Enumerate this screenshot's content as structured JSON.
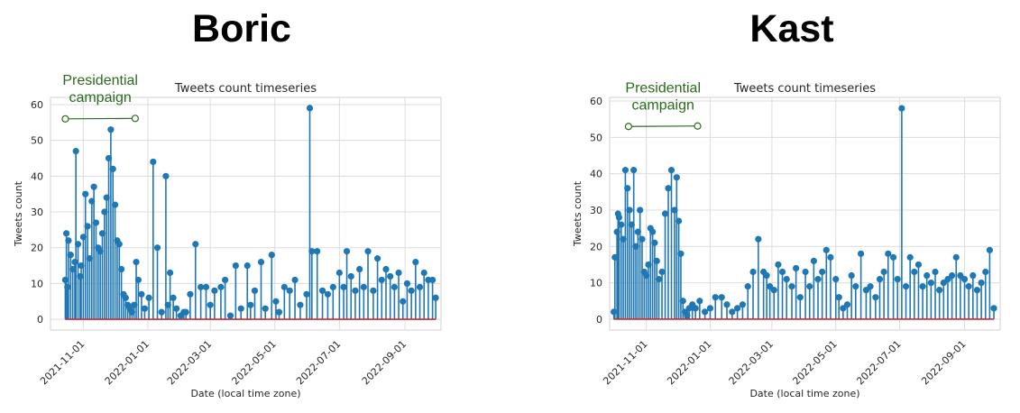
{
  "titles": {
    "left": "Boric",
    "right": "Kast"
  },
  "chart_data": [
    {
      "type": "line",
      "style": "stem",
      "title": "Tweets count timeseries",
      "xlabel": "Date (local time zone)",
      "ylabel": "Tweets count",
      "x_ticks": [
        "2021-11-01",
        "2022-01-01",
        "2022-03-01",
        "2022-05-01",
        "2022-07-01",
        "2022-09-01"
      ],
      "y_ticks": [
        0,
        10,
        20,
        30,
        40,
        50,
        60
      ],
      "xlim": [
        "2021-10-01",
        "2022-10-05"
      ],
      "ylim": [
        -3,
        62
      ],
      "grid": true,
      "marker_color": "#1f77b4",
      "baseline_color": "#d62728",
      "annotation": {
        "text": "Presidential\ncampaign",
        "start": "2021-10-15",
        "end": "2021-12-20",
        "level": 56,
        "color": "#2b6a1e"
      },
      "series": [
        {
          "x": [
            "2021-10-15",
            "2021-10-16",
            "2021-10-17",
            "2021-10-18",
            "2021-10-20",
            "2021-10-22",
            "2021-10-24",
            "2021-10-25",
            "2021-10-27",
            "2021-10-29",
            "2021-10-30",
            "2021-11-01",
            "2021-11-03",
            "2021-11-05",
            "2021-11-07",
            "2021-11-09",
            "2021-11-11",
            "2021-11-13",
            "2021-11-15",
            "2021-11-17",
            "2021-11-19",
            "2021-11-21",
            "2021-11-23",
            "2021-11-25",
            "2021-11-27",
            "2021-11-29",
            "2021-12-01",
            "2021-12-03",
            "2021-12-05",
            "2021-12-07",
            "2021-12-09",
            "2021-12-11",
            "2021-12-13",
            "2021-12-15",
            "2021-12-17",
            "2021-12-19",
            "2021-12-21",
            "2021-12-23",
            "2021-12-26",
            "2021-12-29",
            "2022-01-02",
            "2022-01-06",
            "2022-01-10",
            "2022-01-14",
            "2022-01-18",
            "2022-01-20",
            "2022-01-22",
            "2022-01-25",
            "2022-01-28",
            "2022-02-01",
            "2022-02-04",
            "2022-02-06",
            "2022-02-10",
            "2022-02-15",
            "2022-02-20",
            "2022-02-25",
            "2022-03-01",
            "2022-03-05",
            "2022-03-11",
            "2022-03-15",
            "2022-03-20",
            "2022-03-25",
            "2022-03-30",
            "2022-04-05",
            "2022-04-08",
            "2022-04-12",
            "2022-04-18",
            "2022-04-22",
            "2022-04-28",
            "2022-05-02",
            "2022-05-05",
            "2022-05-10",
            "2022-05-15",
            "2022-05-20",
            "2022-05-25",
            "2022-05-31",
            "2022-06-03",
            "2022-06-05",
            "2022-06-10",
            "2022-06-15",
            "2022-06-20",
            "2022-06-25",
            "2022-07-01",
            "2022-07-05",
            "2022-07-08",
            "2022-07-12",
            "2022-07-16",
            "2022-07-20",
            "2022-07-24",
            "2022-07-28",
            "2022-08-02",
            "2022-08-06",
            "2022-08-10",
            "2022-08-14",
            "2022-08-18",
            "2022-08-22",
            "2022-08-26",
            "2022-08-30",
            "2022-09-03",
            "2022-09-07",
            "2022-09-11",
            "2022-09-15",
            "2022-09-19",
            "2022-09-23",
            "2022-09-27",
            "2022-09-30"
          ],
          "y": [
            11,
            24,
            9,
            22,
            18,
            14,
            16,
            47,
            21,
            12,
            15,
            23,
            35,
            26,
            17,
            33,
            37,
            27,
            20,
            19,
            24,
            30,
            34,
            45,
            53,
            42,
            32,
            22,
            21,
            14,
            7,
            6,
            4,
            3,
            2,
            4,
            16,
            11,
            7,
            3,
            6,
            44,
            20,
            2,
            40,
            4,
            13,
            6,
            3,
            1,
            2,
            2,
            7,
            21,
            9,
            9,
            4,
            8,
            9,
            11,
            1,
            15,
            3,
            15,
            4,
            8,
            16,
            3,
            18,
            5,
            2,
            9,
            8,
            11,
            4,
            7,
            59,
            19,
            19,
            8,
            7,
            9,
            13,
            9,
            19,
            12,
            8,
            14,
            9,
            19,
            8,
            17,
            11,
            14,
            12,
            9,
            13,
            5,
            10,
            8,
            16,
            9,
            13,
            11,
            11,
            6
          ]
        }
      ]
    },
    {
      "type": "line",
      "style": "stem",
      "title": "Tweets count timeseries",
      "xlabel": "Date (local time zone)",
      "ylabel": "Tweets count",
      "x_ticks": [
        "2021-11-01",
        "2022-01-01",
        "2022-03-01",
        "2022-05-01",
        "2022-07-01",
        "2022-09-01"
      ],
      "y_ticks": [
        0,
        10,
        20,
        30,
        40,
        50,
        60
      ],
      "xlim": [
        "2021-09-27",
        "2022-10-05"
      ],
      "ylim": [
        -3,
        61
      ],
      "grid": true,
      "marker_color": "#1f77b4",
      "baseline_color": "#d62728",
      "annotation": {
        "text": "Presidential\ncampaign",
        "start": "2021-10-15",
        "end": "2021-12-20",
        "level": 53,
        "color": "#2b6a1e"
      },
      "series": [
        {
          "x": [
            "2021-10-01",
            "2021-10-02",
            "2021-10-04",
            "2021-10-05",
            "2021-10-06",
            "2021-10-08",
            "2021-10-10",
            "2021-10-12",
            "2021-10-14",
            "2021-10-16",
            "2021-10-18",
            "2021-10-20",
            "2021-10-22",
            "2021-10-24",
            "2021-10-26",
            "2021-10-28",
            "2021-10-30",
            "2021-11-01",
            "2021-11-03",
            "2021-11-05",
            "2021-11-07",
            "2021-11-09",
            "2021-11-11",
            "2021-11-13",
            "2021-11-16",
            "2021-11-19",
            "2021-11-22",
            "2021-11-25",
            "2021-11-28",
            "2021-11-30",
            "2021-12-02",
            "2021-12-04",
            "2021-12-06",
            "2021-12-08",
            "2021-12-10",
            "2021-12-12",
            "2021-12-15",
            "2021-12-18",
            "2021-12-22",
            "2021-12-27",
            "2022-01-01",
            "2022-01-06",
            "2022-01-12",
            "2022-01-17",
            "2022-01-22",
            "2022-01-27",
            "2022-02-01",
            "2022-02-06",
            "2022-02-11",
            "2022-02-16",
            "2022-02-21",
            "2022-02-24",
            "2022-02-27",
            "2022-03-03",
            "2022-03-07",
            "2022-03-11",
            "2022-03-15",
            "2022-03-20",
            "2022-03-24",
            "2022-03-28",
            "2022-04-02",
            "2022-04-06",
            "2022-04-10",
            "2022-04-14",
            "2022-04-18",
            "2022-04-22",
            "2022-04-26",
            "2022-05-01",
            "2022-05-04",
            "2022-05-08",
            "2022-05-12",
            "2022-05-16",
            "2022-05-20",
            "2022-05-25",
            "2022-05-30",
            "2022-06-03",
            "2022-06-08",
            "2022-06-12",
            "2022-06-16",
            "2022-06-20",
            "2022-06-25",
            "2022-06-29",
            "2022-07-03",
            "2022-07-07",
            "2022-07-11",
            "2022-07-15",
            "2022-07-19",
            "2022-07-23",
            "2022-07-27",
            "2022-07-31",
            "2022-08-04",
            "2022-08-08",
            "2022-08-12",
            "2022-08-16",
            "2022-08-20",
            "2022-08-24",
            "2022-08-28",
            "2022-09-01",
            "2022-09-05",
            "2022-09-09",
            "2022-09-13",
            "2022-09-17",
            "2022-09-21",
            "2022-09-25",
            "2022-09-29"
          ],
          "y": [
            2,
            17,
            24,
            29,
            28,
            26,
            22,
            41,
            36,
            30,
            26,
            41,
            20,
            24,
            30,
            22,
            13,
            12,
            15,
            25,
            24,
            21,
            16,
            11,
            13,
            29,
            36,
            41,
            30,
            39,
            27,
            18,
            5,
            2,
            1,
            3,
            4,
            3,
            5,
            2,
            3,
            6,
            6,
            4,
            2,
            3,
            4,
            9,
            13,
            22,
            13,
            12,
            9,
            8,
            15,
            13,
            11,
            9,
            14,
            6,
            13,
            9,
            16,
            11,
            13,
            19,
            17,
            11,
            6,
            3,
            4,
            12,
            9,
            18,
            8,
            9,
            6,
            11,
            13,
            18,
            17,
            11,
            58,
            9,
            17,
            13,
            15,
            9,
            12,
            10,
            13,
            8,
            10,
            11,
            12,
            17,
            12,
            11,
            9,
            12,
            8,
            10,
            13,
            19,
            3
          ]
        }
      ]
    }
  ]
}
